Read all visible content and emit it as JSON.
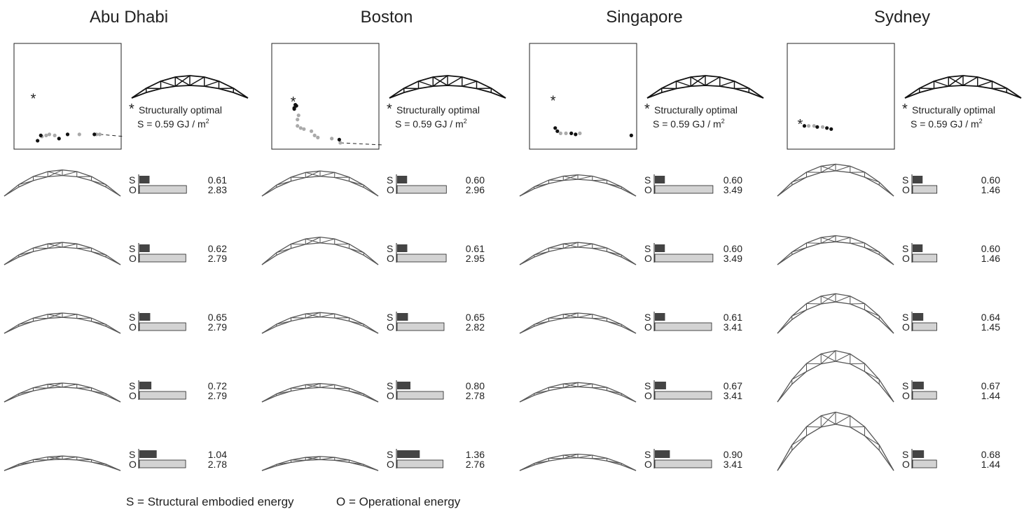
{
  "chart_data": {
    "type": "bar",
    "cities": [
      {
        "name": "Abu Dhabi",
        "optimal_label": "Structurally optimal",
        "optimal_value": "S = 0.59 GJ / m",
        "pareto": {
          "star": [
            0.18,
            0.48
          ],
          "black": [
            [
              0.22,
              0.08
            ],
            [
              0.25,
              0.13
            ],
            [
              0.42,
              0.1
            ],
            [
              0.5,
              0.14
            ],
            [
              0.75,
              0.14
            ]
          ],
          "gray": [
            [
              0.26,
              0.12
            ],
            [
              0.3,
              0.13
            ],
            [
              0.33,
              0.14
            ],
            [
              0.38,
              0.13
            ],
            [
              0.61,
              0.14
            ],
            [
              0.77,
              0.14
            ],
            [
              0.8,
              0.14
            ]
          ],
          "dashed": true
        },
        "rows": [
          {
            "s": 0.61,
            "o": 2.83,
            "rise": 0.28
          },
          {
            "s": 0.62,
            "o": 2.79,
            "rise": 0.2
          },
          {
            "s": 0.65,
            "o": 2.79,
            "rise": 0.16
          },
          {
            "s": 0.72,
            "o": 2.79,
            "rise": 0.13
          },
          {
            "s": 1.04,
            "o": 2.78,
            "rise": 0.04
          }
        ]
      },
      {
        "name": "Boston",
        "optimal_label": "Structurally optimal",
        "optimal_value": "S = 0.59 GJ / m",
        "pareto": {
          "star": [
            0.2,
            0.45
          ],
          "black": [
            [
              0.22,
              0.42
            ],
            [
              0.23,
              0.41
            ],
            [
              0.21,
              0.39
            ],
            [
              0.21,
              0.38
            ],
            [
              0.63,
              0.09
            ]
          ],
          "gray": [
            [
              0.25,
              0.32
            ],
            [
              0.24,
              0.28
            ],
            [
              0.24,
              0.22
            ],
            [
              0.27,
              0.2
            ],
            [
              0.3,
              0.19
            ],
            [
              0.37,
              0.17
            ],
            [
              0.4,
              0.13
            ],
            [
              0.43,
              0.11
            ],
            [
              0.56,
              0.1
            ],
            [
              0.64,
              0.06
            ]
          ],
          "dashed": true
        },
        "rows": [
          {
            "s": 0.6,
            "o": 2.96,
            "rise": 0.26
          },
          {
            "s": 0.61,
            "o": 2.95,
            "rise": 0.31
          },
          {
            "s": 0.65,
            "o": 2.82,
            "rise": 0.17
          },
          {
            "s": 0.8,
            "o": 2.78,
            "rise": 0.12
          },
          {
            "s": 1.36,
            "o": 2.76,
            "rise": 0.03
          }
        ]
      },
      {
        "name": "Singapore",
        "optimal_label": "Structurally optimal",
        "optimal_value": "S = 0.59 GJ / m",
        "pareto": {
          "star": [
            0.22,
            0.46
          ],
          "black": [
            [
              0.24,
              0.2
            ],
            [
              0.26,
              0.17
            ],
            [
              0.39,
              0.15
            ],
            [
              0.43,
              0.14
            ],
            [
              0.95,
              0.13
            ]
          ],
          "gray": [
            [
              0.29,
              0.15
            ],
            [
              0.34,
              0.15
            ],
            [
              0.47,
              0.15
            ]
          ],
          "dashed": false
        },
        "rows": [
          {
            "s": 0.6,
            "o": 3.49,
            "rise": 0.18
          },
          {
            "s": 0.6,
            "o": 3.49,
            "rise": 0.2
          },
          {
            "s": 0.61,
            "o": 3.41,
            "rise": 0.16
          },
          {
            "s": 0.67,
            "o": 3.41,
            "rise": 0.14
          },
          {
            "s": 0.9,
            "o": 3.41,
            "rise": 0.08
          }
        ]
      },
      {
        "name": "Sydney",
        "optimal_label": "Structurally optimal",
        "optimal_value": "S = 0.59 GJ / m",
        "pareto": {
          "star": [
            0.12,
            0.24
          ],
          "black": [
            [
              0.16,
              0.22
            ],
            [
              0.28,
              0.21
            ],
            [
              0.37,
              0.2
            ],
            [
              0.41,
              0.19
            ]
          ],
          "gray": [
            [
              0.2,
              0.22
            ],
            [
              0.25,
              0.22
            ],
            [
              0.33,
              0.21
            ]
          ],
          "dashed": false
        },
        "rows": [
          {
            "s": 0.6,
            "o": 1.46,
            "rise": 0.4
          },
          {
            "s": 0.6,
            "o": 1.46,
            "rise": 0.34
          },
          {
            "s": 0.64,
            "o": 1.45,
            "rise": 0.56
          },
          {
            "s": 0.67,
            "o": 1.44,
            "rise": 0.8
          },
          {
            "s": 0.68,
            "o": 1.44,
            "rise": 0.95
          }
        ]
      }
    ],
    "bar_labels": {
      "s": "S",
      "o": "O"
    },
    "legend": {
      "s": "S = Structural embodied energy",
      "o": "O = Operational energy"
    },
    "superscript": "2",
    "colors": {
      "structural": "#444444",
      "operational": "#d3d3d3",
      "truss": "#555555",
      "optimal_truss": "#111111",
      "pareto_black": "#111111",
      "pareto_gray": "#aaaaaa"
    }
  }
}
